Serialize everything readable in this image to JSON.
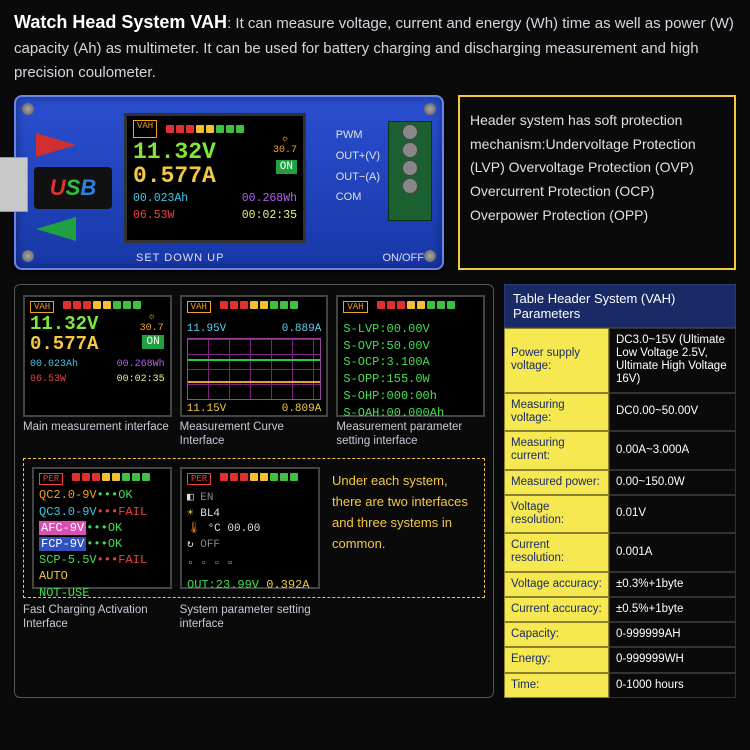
{
  "header": {
    "title": "Watch Head System VAH",
    "desc": ": It can measure voltage, current and energy (Wh) time as well as power (W) capacity (Ah) as multimeter. It can be used for battery charging and discharging measurement and high precision coulometer."
  },
  "device": {
    "usb_u": "U",
    "usb_s": "S",
    "usb_b": "B",
    "vah": "VAH",
    "voltage": "11.32V",
    "current": "0.577A",
    "temp_icon": "°C",
    "temp": "30.7",
    "on": "ON",
    "ah": "00.023Ah",
    "wh": "00.268Wh",
    "watts": "06.53W",
    "time": "00:02:35",
    "pwm": "PWM",
    "outv": "OUT+(V)",
    "outa": "OUT−(A)",
    "com": "COM",
    "btns": "SET  DOWN  UP",
    "onoff": "ON/OFF"
  },
  "info_box": "Header system has soft protection mechanism:Undervoltage Protection (LVP) Overvoltage Protection (OVP) Overcurrent Protection (OCP) Overpower Protection (OPP)",
  "screens": {
    "main": {
      "caption": "Main measurement interface",
      "voltage": "11.32V",
      "current": "0.577A",
      "temp": "30.7",
      "on": "ON",
      "ah": "00.023Ah",
      "wh": "00.268Wh",
      "watts": "06.53W",
      "time": "00:02:35"
    },
    "curve": {
      "caption": "Measurement Curve Interface",
      "top_v": "11.95V",
      "top_a": "0.889A",
      "bot_v": "11.15V",
      "bot_a": "0.809A"
    },
    "paramset": {
      "caption": "Measurement parameter setting interface",
      "lines": [
        "S-LVP:00.00V",
        "S-OVP:50.00V",
        "S-OCP:3.100A",
        "S-OPP:155.0W",
        "S-OHP:000:00h",
        "S-OAH:00.000Ah"
      ]
    },
    "fastcharge": {
      "caption": "Fast Charging Activation Interface",
      "per": "PER",
      "l1a": "QC2.0-9V",
      "l1b": "•••OK",
      "l2a": "QC3.0-9V",
      "l2b": "•••FAIL",
      "l3a": "AFC-9V",
      "l3b": "•••OK",
      "l4a": "FCP-9V",
      "l4b": "•••OK",
      "l5a": "SCP-5.5V",
      "l5b": "•••FAIL",
      "l6": "AUTO",
      "l7": "NOT-USE"
    },
    "sysparam": {
      "caption": "System parameter setting interface",
      "per": "PER",
      "bl": "BL4",
      "temp": "°C 00.00",
      "out": "OUT:23.99V",
      "out_a": "0.392A"
    },
    "under_text": "Under each system, there are two interfaces and three systems in common."
  },
  "params": {
    "title": "Table Header System (VAH) Parameters",
    "rows": [
      {
        "l": "Power supply voltage:",
        "r": "DC3.0~15V (Ultimate Low Voltage 2.5V, Ultimate High Voltage 16V)"
      },
      {
        "l": "Measuring voltage:",
        "r": "DC0.00~50.00V"
      },
      {
        "l": "Measuring current:",
        "r": "0.00A~3.000A"
      },
      {
        "l": "Measured power:",
        "r": "0.00~150.0W"
      },
      {
        "l": "Voltage resolution:",
        "r": "0.01V"
      },
      {
        "l": "Current resolution:",
        "r": "0.001A"
      },
      {
        "l": "Voltage accuracy:",
        "r": "±0.3%+1byte"
      },
      {
        "l": "Current accuracy:",
        "r": "±0.5%+1byte"
      },
      {
        "l": "Capacity:",
        "r": "0-999999AH"
      },
      {
        "l": "Energy:",
        "r": "0-999999WH"
      },
      {
        "l": "Time:",
        "r": "0-1000 hours"
      }
    ]
  },
  "colors": {
    "dots": [
      "#e03030",
      "#e03030",
      "#e03030",
      "#f5c030",
      "#f5c030",
      "#40c040",
      "#40c040",
      "#40c040"
    ]
  }
}
